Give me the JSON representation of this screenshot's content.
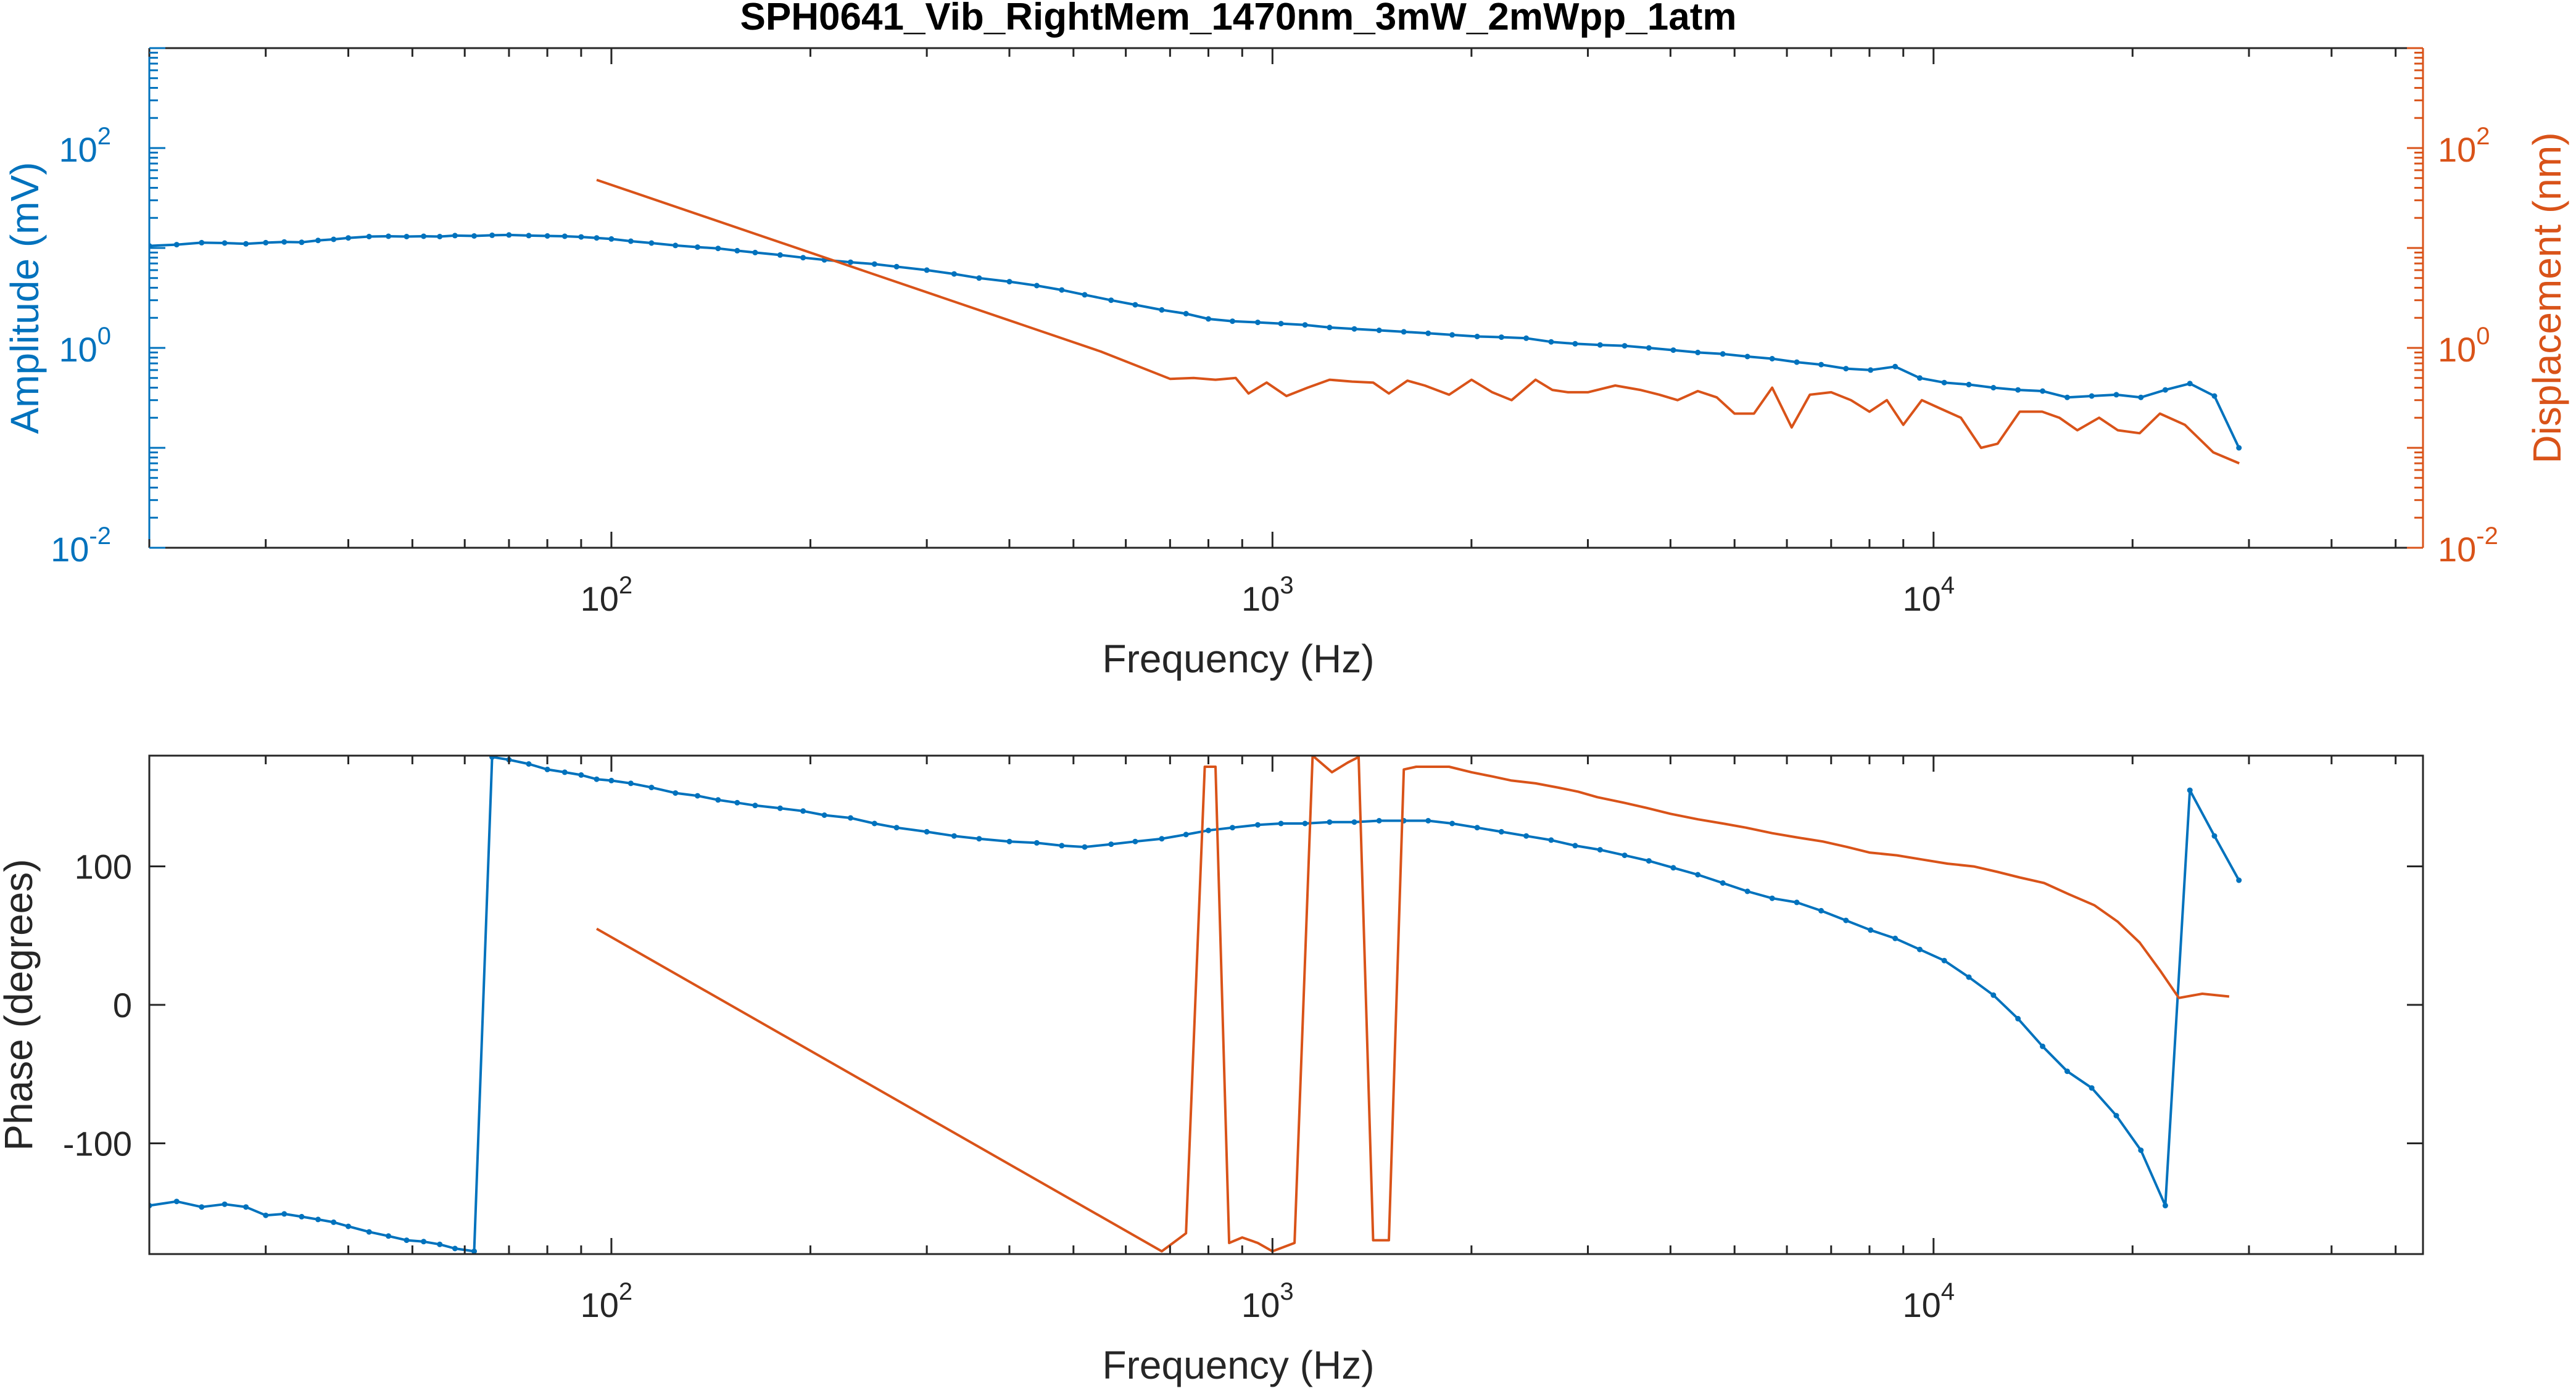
{
  "chart_data": [
    {
      "type": "line",
      "title": "SPH0641_Vib_RightMem_1470nm_3mW_2mWpp_1atm",
      "xlabel": "Frequency (Hz)",
      "x_scale": "log",
      "xlim": [
        20,
        55000
      ],
      "x_ticks": [
        100,
        1000,
        10000
      ],
      "x_tick_labels": [
        [
          "10",
          "2"
        ],
        [
          "10",
          "3"
        ],
        [
          "10",
          "4"
        ]
      ],
      "left_axis": {
        "label": "Amplitude (mV)",
        "scale": "log",
        "ylim": [
          0.01,
          1000
        ],
        "ticks": [
          0.01,
          1,
          100
        ],
        "tick_labels": [
          [
            "10",
            "-2"
          ],
          [
            "10",
            "0"
          ],
          [
            "10",
            "2"
          ]
        ],
        "color": "#0072BD"
      },
      "right_axis": {
        "label": "Displacement (nm)",
        "scale": "log",
        "ylim": [
          0.01,
          1000
        ],
        "ticks": [
          0.01,
          1,
          100
        ],
        "tick_labels": [
          [
            "10",
            "-2"
          ],
          [
            "10",
            "0"
          ],
          [
            "10",
            "2"
          ]
        ],
        "color": "#D95319"
      },
      "series": [
        {
          "axis": "left",
          "color": "#0072BD",
          "marker": "dot",
          "x": [
            20,
            22,
            24,
            26,
            28,
            30,
            32,
            34,
            36,
            38,
            40,
            43,
            46,
            49,
            52,
            55,
            58,
            62,
            66,
            70,
            75,
            80,
            85,
            90,
            95,
            100,
            107,
            115,
            125,
            135,
            145,
            155,
            165,
            180,
            195,
            210,
            230,
            250,
            270,
            300,
            330,
            360,
            400,
            440,
            480,
            520,
            570,
            620,
            680,
            740,
            800,
            870,
            950,
            1030,
            1120,
            1220,
            1330,
            1450,
            1580,
            1720,
            1870,
            2040,
            2220,
            2420,
            2640,
            2870,
            3130,
            3410,
            3710,
            4040,
            4400,
            4800,
            5230,
            5700,
            6210,
            6760,
            7370,
            8030,
            8750,
            9530,
            10380,
            11310,
            12320,
            13420,
            14620,
            15930,
            17350,
            18900,
            20590,
            22420,
            24420,
            26600,
            28970
          ],
          "y": [
            10.5,
            10.8,
            11.3,
            11.2,
            11.0,
            11.3,
            11.5,
            11.4,
            11.9,
            12.2,
            12.6,
            13.0,
            13.1,
            13.0,
            13.1,
            13.0,
            13.3,
            13.2,
            13.4,
            13.5,
            13.3,
            13.2,
            13.1,
            12.9,
            12.6,
            12.3,
            11.7,
            11.2,
            10.6,
            10.2,
            9.9,
            9.4,
            9.0,
            8.5,
            8.0,
            7.6,
            7.2,
            6.9,
            6.5,
            6.0,
            5.5,
            5.0,
            4.6,
            4.2,
            3.8,
            3.4,
            3.0,
            2.7,
            2.4,
            2.2,
            1.95,
            1.85,
            1.8,
            1.75,
            1.7,
            1.6,
            1.55,
            1.5,
            1.45,
            1.4,
            1.35,
            1.3,
            1.28,
            1.25,
            1.15,
            1.1,
            1.07,
            1.05,
            1.0,
            0.95,
            0.9,
            0.87,
            0.82,
            0.78,
            0.72,
            0.68,
            0.62,
            0.6,
            0.65,
            0.5,
            0.45,
            0.43,
            0.4,
            0.38,
            0.37,
            0.32,
            0.33,
            0.34,
            0.32,
            0.38,
            0.44,
            0.33,
            0.1
          ]
        },
        {
          "axis": "right",
          "color": "#D95319",
          "marker": "none",
          "x": [
            95,
            550,
            700,
            760,
            820,
            880,
            920,
            980,
            1050,
            1130,
            1220,
            1320,
            1420,
            1500,
            1600,
            1700,
            1850,
            2000,
            2150,
            2300,
            2500,
            2650,
            2800,
            3000,
            3300,
            3600,
            3850,
            4100,
            4400,
            4700,
            5000,
            5350,
            5700,
            6100,
            6500,
            7000,
            7500,
            8000,
            8500,
            9000,
            9600,
            10200,
            11000,
            11800,
            12500,
            13500,
            14600,
            15500,
            16500,
            17800,
            19000,
            20500,
            22000,
            24000,
            26500,
            29000
          ],
          "y": [
            48,
            0.92,
            0.49,
            0.5,
            0.48,
            0.5,
            0.35,
            0.45,
            0.33,
            0.4,
            0.48,
            0.46,
            0.45,
            0.35,
            0.47,
            0.42,
            0.34,
            0.48,
            0.36,
            0.3,
            0.48,
            0.38,
            0.36,
            0.36,
            0.42,
            0.38,
            0.34,
            0.3,
            0.37,
            0.32,
            0.22,
            0.22,
            0.4,
            0.16,
            0.34,
            0.36,
            0.3,
            0.23,
            0.3,
            0.17,
            0.3,
            0.25,
            0.2,
            0.1,
            0.11,
            0.23,
            0.23,
            0.2,
            0.15,
            0.2,
            0.15,
            0.14,
            0.22,
            0.17,
            0.09,
            0.07
          ]
        }
      ]
    },
    {
      "type": "line",
      "xlabel": "Frequency (Hz)",
      "ylabel": "Phase (degrees)",
      "x_scale": "log",
      "xlim": [
        20,
        55000
      ],
      "x_ticks": [
        100,
        1000,
        10000
      ],
      "x_tick_labels": [
        [
          "10",
          "2"
        ],
        [
          "10",
          "3"
        ],
        [
          "10",
          "4"
        ]
      ],
      "ylim": [
        -180,
        180
      ],
      "y_ticks": [
        -100,
        0,
        100
      ],
      "y_tick_labels": [
        "-100",
        "0",
        "100"
      ],
      "series": [
        {
          "color": "#0072BD",
          "marker": "dot",
          "x": [
            20,
            22,
            24,
            26,
            28,
            30,
            32,
            34,
            36,
            38,
            40,
            43,
            46,
            49,
            52,
            55,
            58,
            62,
            66,
            70,
            75,
            80,
            85,
            90,
            95,
            100,
            107,
            115,
            125,
            135,
            145,
            155,
            165,
            180,
            195,
            210,
            230,
            250,
            270,
            300,
            330,
            360,
            400,
            440,
            480,
            520,
            570,
            620,
            680,
            740,
            800,
            870,
            950,
            1030,
            1120,
            1220,
            1330,
            1450,
            1580,
            1720,
            1870,
            2040,
            2220,
            2420,
            2640,
            2870,
            3130,
            3410,
            3710,
            4040,
            4400,
            4800,
            5230,
            5700,
            6210,
            6760,
            7370,
            8030,
            8750,
            9530,
            10380,
            11310,
            12320,
            13420,
            14620,
            15930,
            17350,
            18900,
            20590,
            22420,
            24420,
            26600,
            28970
          ],
          "y": [
            -145,
            -142,
            -146,
            -144,
            -146,
            -152,
            -151,
            -153,
            -155,
            -157,
            -160,
            -164,
            -167,
            -170,
            -171,
            -173,
            -176,
            -178,
            179,
            177,
            174,
            170,
            168,
            166,
            163,
            162,
            160,
            157,
            153,
            151,
            148,
            146,
            144,
            142,
            140,
            137,
            135,
            131,
            128,
            125,
            122,
            120,
            118,
            117,
            115,
            114,
            116,
            118,
            120,
            123,
            126,
            128,
            130,
            131,
            131,
            132,
            132,
            133,
            133,
            133,
            131,
            128,
            125,
            122,
            119,
            115,
            112,
            108,
            104,
            99,
            94,
            88,
            82,
            77,
            74,
            68,
            61,
            54,
            48,
            40,
            32,
            20,
            7,
            -10,
            -30,
            -48,
            -60,
            -80,
            -105,
            -145,
            155,
            122,
            90
          ]
        },
        {
          "color": "#D95319",
          "marker": "none",
          "x": [
            95,
            680,
            740,
            790,
            820,
            860,
            900,
            950,
            1000,
            1080,
            1150,
            1230,
            1300,
            1350,
            1420,
            1500,
            1580,
            1650,
            1720,
            1850,
            2000,
            2150,
            2300,
            2500,
            2700,
            2900,
            3100,
            3400,
            3700,
            4000,
            4400,
            4800,
            5200,
            5700,
            6200,
            6800,
            7400,
            8000,
            8800,
            9600,
            10500,
            11500,
            12500,
            13500,
            14700,
            16000,
            17500,
            19000,
            20500,
            22000,
            23500,
            25500,
            28000
          ],
          "y": [
            55,
            -178,
            -165,
            172,
            172,
            -172,
            -168,
            -172,
            -178,
            -172,
            180,
            168,
            175,
            179,
            -170,
            -170,
            170,
            172,
            172,
            172,
            168,
            165,
            162,
            160,
            157,
            154,
            150,
            146,
            142,
            138,
            134,
            131,
            128,
            124,
            121,
            118,
            114,
            110,
            108,
            105,
            102,
            100,
            96,
            92,
            88,
            80,
            72,
            60,
            45,
            25,
            5,
            8,
            6
          ]
        }
      ]
    }
  ]
}
